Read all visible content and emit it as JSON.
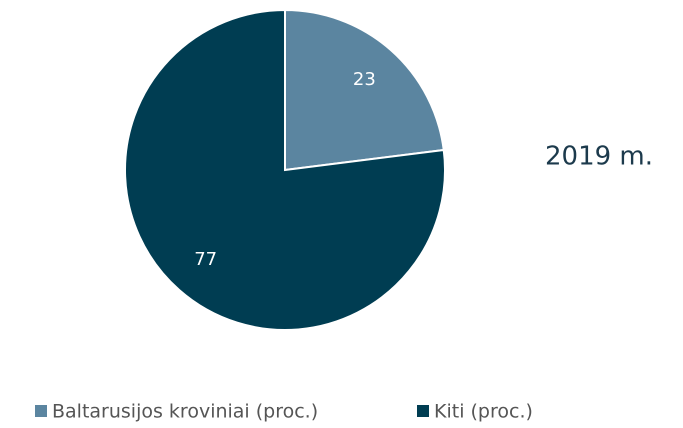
{
  "chart_data": {
    "type": "pie",
    "title": "2019 m.",
    "categories": [
      "Baltarusijos kroviniai (proc.)",
      "Kiti (proc.)"
    ],
    "values": [
      23,
      77
    ],
    "colors": [
      "#5b85a0",
      "#003d52"
    ]
  }
}
